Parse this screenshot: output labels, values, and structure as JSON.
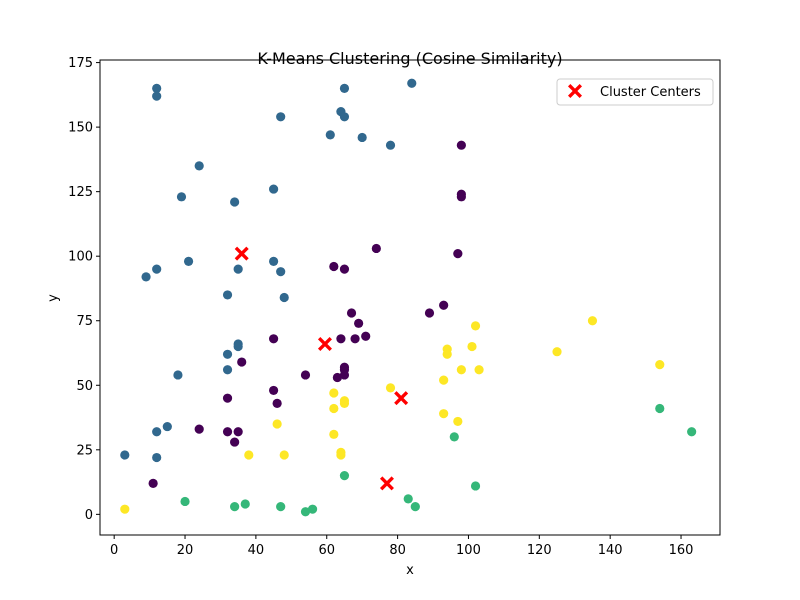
{
  "chart_data": {
    "type": "scatter",
    "title": "K-Means Clustering (Cosine Similarity)",
    "xlabel": "x",
    "ylabel": "y",
    "xlim": [
      -4,
      171
    ],
    "ylim": [
      -8,
      176
    ],
    "xticks": [
      0,
      20,
      40,
      60,
      80,
      100,
      120,
      140,
      160
    ],
    "yticks": [
      0,
      25,
      50,
      75,
      100,
      125,
      150,
      175
    ],
    "grid": false,
    "legend": {
      "placement": "top-right",
      "entries": [
        "Cluster Centers"
      ]
    },
    "cluster_colors": [
      "#440154",
      "#31688e",
      "#35b779",
      "#fde725"
    ],
    "center_color": "#ff0000",
    "series": [
      {
        "cluster": 0,
        "color": "#440154",
        "points": [
          [
            98,
            143
          ],
          [
            98,
            124
          ],
          [
            98,
            123
          ],
          [
            97,
            101
          ],
          [
            74,
            103
          ],
          [
            62,
            96
          ],
          [
            65,
            95
          ],
          [
            93,
            81
          ],
          [
            89,
            78
          ],
          [
            67,
            78
          ],
          [
            69,
            74
          ],
          [
            64,
            68
          ],
          [
            68,
            68
          ],
          [
            71,
            69
          ],
          [
            45,
            68
          ],
          [
            36,
            59
          ],
          [
            65,
            57
          ],
          [
            65,
            56
          ],
          [
            65,
            54
          ],
          [
            63,
            53
          ],
          [
            54,
            54
          ],
          [
            45,
            48
          ],
          [
            46,
            43
          ],
          [
            32,
            45
          ],
          [
            24,
            33
          ],
          [
            32,
            32
          ],
          [
            35,
            32
          ],
          [
            34,
            28
          ],
          [
            11,
            12
          ]
        ]
      },
      {
        "cluster": 1,
        "color": "#31688e",
        "points": [
          [
            12,
            165
          ],
          [
            12,
            162
          ],
          [
            65,
            165
          ],
          [
            84,
            167
          ],
          [
            64,
            156
          ],
          [
            65,
            154
          ],
          [
            47,
            154
          ],
          [
            61,
            147
          ],
          [
            70,
            146
          ],
          [
            78,
            143
          ],
          [
            24,
            135
          ],
          [
            45,
            126
          ],
          [
            19,
            123
          ],
          [
            34,
            121
          ],
          [
            21,
            98
          ],
          [
            45,
            98
          ],
          [
            12,
            95
          ],
          [
            35,
            95
          ],
          [
            47,
            94
          ],
          [
            9,
            92
          ],
          [
            32,
            85
          ],
          [
            48,
            84
          ],
          [
            35,
            66
          ],
          [
            35,
            65
          ],
          [
            32,
            62
          ],
          [
            32,
            56
          ],
          [
            18,
            54
          ],
          [
            15,
            34
          ],
          [
            12,
            32
          ],
          [
            3,
            23
          ],
          [
            12,
            22
          ]
        ]
      },
      {
        "cluster": 2,
        "color": "#35b779",
        "points": [
          [
            154,
            41
          ],
          [
            163,
            32
          ],
          [
            96,
            30
          ],
          [
            65,
            15
          ],
          [
            102,
            11
          ],
          [
            83,
            6
          ],
          [
            85,
            3
          ],
          [
            20,
            5
          ],
          [
            37,
            4
          ],
          [
            34,
            3
          ],
          [
            47,
            3
          ],
          [
            56,
            2
          ],
          [
            54,
            1
          ]
        ]
      },
      {
        "cluster": 3,
        "color": "#fde725",
        "points": [
          [
            135,
            75
          ],
          [
            102,
            73
          ],
          [
            101,
            65
          ],
          [
            94,
            64
          ],
          [
            94,
            62
          ],
          [
            125,
            63
          ],
          [
            154,
            58
          ],
          [
            98,
            56
          ],
          [
            103,
            56
          ],
          [
            93,
            52
          ],
          [
            78,
            49
          ],
          [
            62,
            47
          ],
          [
            65,
            44
          ],
          [
            65,
            43
          ],
          [
            62,
            41
          ],
          [
            93,
            39
          ],
          [
            97,
            36
          ],
          [
            46,
            35
          ],
          [
            62,
            31
          ],
          [
            64,
            24
          ],
          [
            64,
            23
          ],
          [
            38,
            23
          ],
          [
            48,
            23
          ],
          [
            3,
            2
          ]
        ]
      }
    ],
    "centers": [
      [
        36,
        101
      ],
      [
        59.5,
        66
      ],
      [
        81,
        45
      ],
      [
        77,
        12
      ]
    ]
  }
}
